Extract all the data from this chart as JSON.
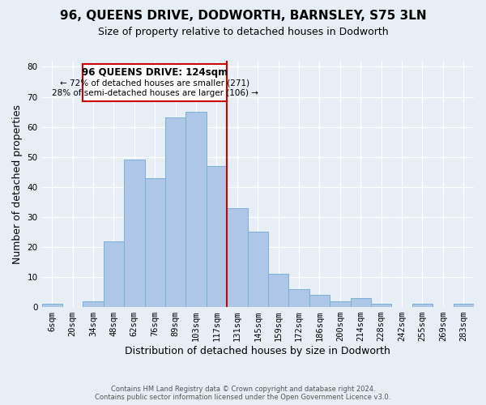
{
  "title": "96, QUEENS DRIVE, DODWORTH, BARNSLEY, S75 3LN",
  "subtitle": "Size of property relative to detached houses in Dodworth",
  "xlabel": "Distribution of detached houses by size in Dodworth",
  "ylabel": "Number of detached properties",
  "footer_line1": "Contains HM Land Registry data © Crown copyright and database right 2024.",
  "footer_line2": "Contains public sector information licensed under the Open Government Licence v3.0.",
  "bar_labels": [
    "6sqm",
    "20sqm",
    "34sqm",
    "48sqm",
    "62sqm",
    "76sqm",
    "89sqm",
    "103sqm",
    "117sqm",
    "131sqm",
    "145sqm",
    "159sqm",
    "172sqm",
    "186sqm",
    "200sqm",
    "214sqm",
    "228sqm",
    "242sqm",
    "255sqm",
    "269sqm",
    "283sqm"
  ],
  "bar_values": [
    1,
    0,
    2,
    22,
    49,
    43,
    63,
    65,
    47,
    33,
    25,
    11,
    6,
    4,
    2,
    3,
    1,
    0,
    1,
    0,
    1
  ],
  "bar_color": "#aec6e8",
  "bar_edge_color": "#7aafd4",
  "annotation_line1": "96 QUEENS DRIVE: 124sqm",
  "annotation_line2": "← 72% of detached houses are smaller (271)",
  "annotation_line3": "28% of semi-detached houses are larger (106) →",
  "annotation_box_color": "#ffffff",
  "annotation_box_edge_color": "#cc0000",
  "vline_color": "#cc0000",
  "vline_x": 8.5,
  "ylim": [
    0,
    82
  ],
  "yticks": [
    0,
    10,
    20,
    30,
    40,
    50,
    60,
    70,
    80
  ],
  "background_color": "#e8eef5",
  "title_fontsize": 11,
  "subtitle_fontsize": 9,
  "tick_fontsize": 7.5,
  "ylabel_fontsize": 9,
  "xlabel_fontsize": 9,
  "footer_fontsize": 6,
  "annot_fontsize1": 8.5,
  "annot_fontsize2": 7.5
}
